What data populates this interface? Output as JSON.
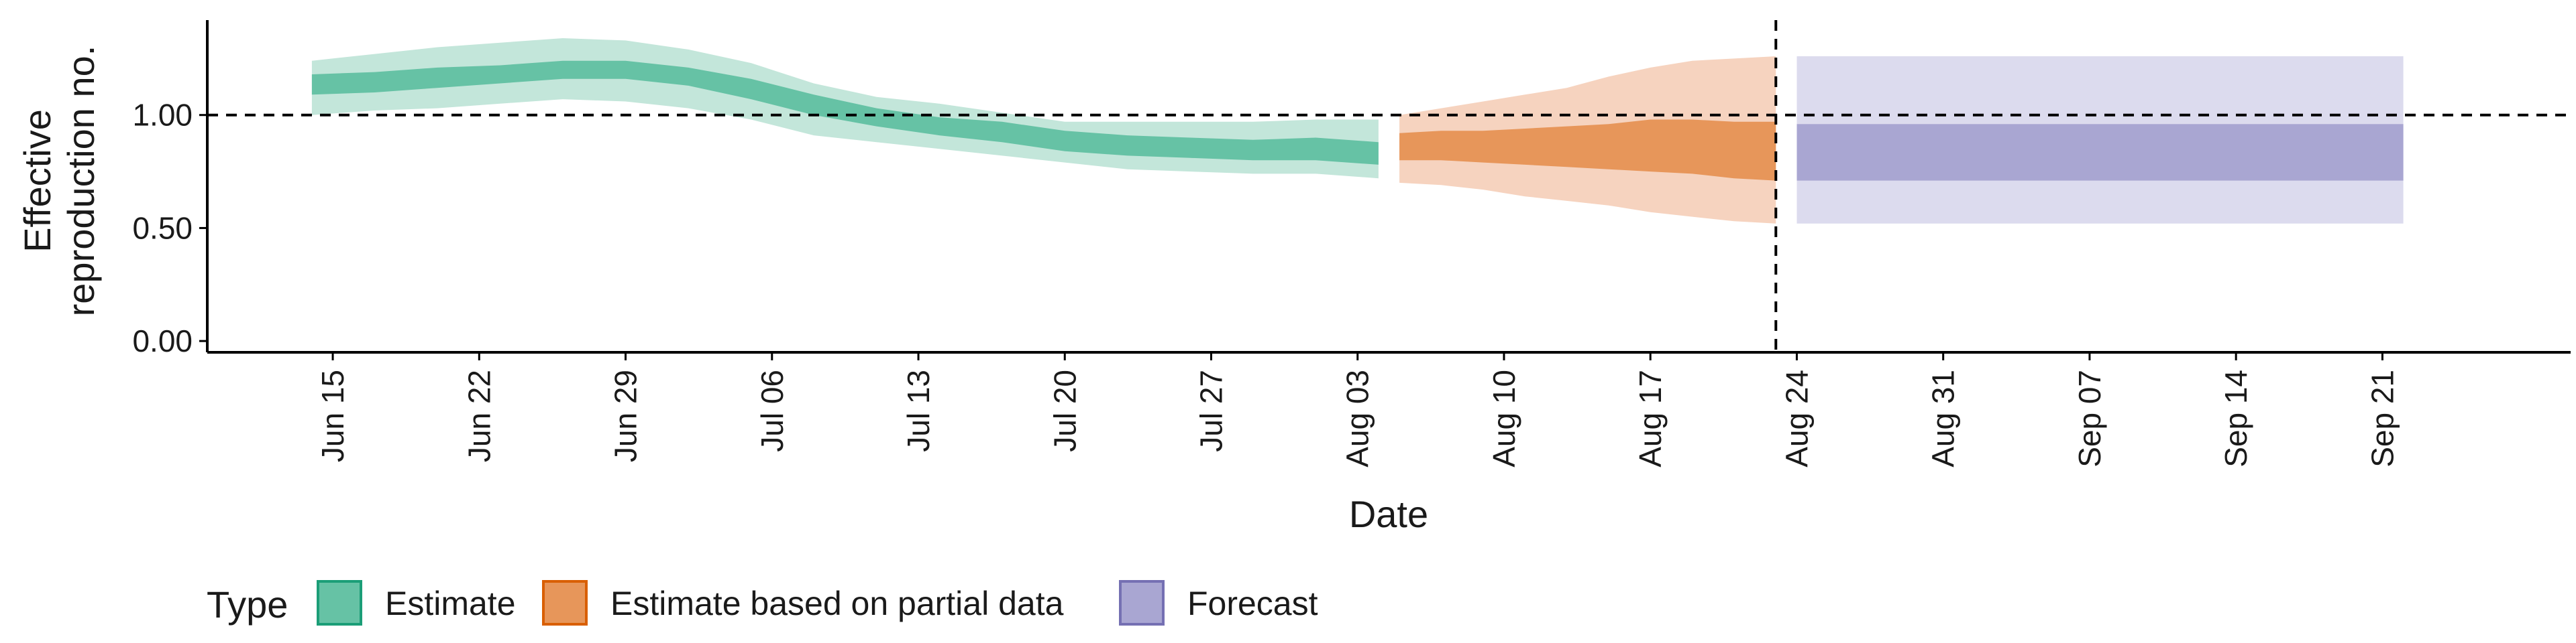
{
  "chart_data": {
    "type": "area",
    "xlabel": "Date",
    "ylabel_lines": [
      "Effective",
      "reproduction no."
    ],
    "x_ticks": [
      "2020-06-15",
      "2020-06-22",
      "2020-06-29",
      "2020-07-06",
      "2020-07-13",
      "2020-07-20",
      "2020-07-27",
      "2020-08-03",
      "2020-08-10",
      "2020-08-17",
      "2020-08-24",
      "2020-08-31",
      "2020-09-07",
      "2020-09-14",
      "2020-09-21"
    ],
    "x_tick_labels": [
      "Jun 15",
      "Jun 22",
      "Jun 29",
      "Jul 06",
      "Jul 13",
      "Jul 20",
      "Jul 27",
      "Aug 03",
      "Aug 10",
      "Aug 17",
      "Aug 24",
      "Aug 31",
      "Sep 07",
      "Sep 14",
      "Sep 21"
    ],
    "xlim": [
      "2020-06-09",
      "2020-09-30"
    ],
    "y_ticks": [
      0.0,
      0.5,
      1.0
    ],
    "y_tick_labels": [
      "0.00",
      "0.50",
      "1.00"
    ],
    "ylim": [
      -0.05,
      1.42
    ],
    "hline": 1.0,
    "vline": "2020-08-23",
    "grid": false,
    "legend": {
      "title": "Type",
      "position": "bottom",
      "items": [
        {
          "label": "Estimate",
          "fill": "#66c2a5",
          "border": "#1b9e77"
        },
        {
          "label": "Estimate based on partial data",
          "fill": "#e7965a",
          "border": "#d95f02"
        },
        {
          "label": "Forecast",
          "fill": "#a9a6d2",
          "border": "#7570b3"
        }
      ]
    },
    "series": [
      {
        "name": "Estimate",
        "inner_color": "#66c2a5",
        "outer_color": "#c3e6da",
        "x": [
          "2020-06-14",
          "2020-06-17",
          "2020-06-20",
          "2020-06-23",
          "2020-06-26",
          "2020-06-29",
          "2020-07-02",
          "2020-07-05",
          "2020-07-08",
          "2020-07-11",
          "2020-07-14",
          "2020-07-17",
          "2020-07-20",
          "2020-07-23",
          "2020-07-26",
          "2020-07-29",
          "2020-08-01",
          "2020-08-04"
        ],
        "inner_upper": [
          1.18,
          1.19,
          1.21,
          1.22,
          1.24,
          1.24,
          1.21,
          1.16,
          1.09,
          1.03,
          0.99,
          0.97,
          0.93,
          0.91,
          0.9,
          0.89,
          0.9,
          0.88
        ],
        "inner_lower": [
          1.09,
          1.1,
          1.12,
          1.14,
          1.16,
          1.16,
          1.13,
          1.07,
          1.0,
          0.95,
          0.91,
          0.88,
          0.84,
          0.82,
          0.81,
          0.8,
          0.8,
          0.78
        ],
        "outer_upper": [
          1.24,
          1.27,
          1.3,
          1.32,
          1.34,
          1.33,
          1.29,
          1.23,
          1.14,
          1.08,
          1.05,
          1.01,
          0.97,
          0.97,
          0.97,
          0.97,
          0.98,
          0.98
        ],
        "outer_lower": [
          1.0,
          1.02,
          1.03,
          1.05,
          1.07,
          1.06,
          1.03,
          0.98,
          0.91,
          0.88,
          0.85,
          0.82,
          0.79,
          0.76,
          0.75,
          0.74,
          0.74,
          0.72
        ]
      },
      {
        "name": "Estimate based on partial data",
        "inner_color": "#e7965a",
        "outer_color": "#f6d3bf",
        "x": [
          "2020-08-05",
          "2020-08-07",
          "2020-08-09",
          "2020-08-11",
          "2020-08-13",
          "2020-08-15",
          "2020-08-17",
          "2020-08-19",
          "2020-08-21",
          "2020-08-23"
        ],
        "inner_upper": [
          0.92,
          0.93,
          0.93,
          0.94,
          0.95,
          0.96,
          0.98,
          0.98,
          0.97,
          0.97
        ],
        "inner_lower": [
          0.8,
          0.8,
          0.79,
          0.78,
          0.77,
          0.76,
          0.75,
          0.74,
          0.72,
          0.71
        ],
        "outer_upper": [
          1.0,
          1.03,
          1.06,
          1.09,
          1.12,
          1.17,
          1.21,
          1.24,
          1.25,
          1.26
        ],
        "outer_lower": [
          0.7,
          0.69,
          0.67,
          0.64,
          0.62,
          0.6,
          0.57,
          0.55,
          0.53,
          0.52
        ]
      },
      {
        "name": "Forecast",
        "inner_color": "#a9a6d2",
        "outer_color": "#dcdbee",
        "x": [
          "2020-08-24",
          "2020-09-22"
        ],
        "inner_upper": [
          0.96,
          0.96
        ],
        "inner_lower": [
          0.71,
          0.71
        ],
        "outer_upper": [
          1.26,
          1.26
        ],
        "outer_lower": [
          0.52,
          0.52
        ]
      }
    ]
  }
}
